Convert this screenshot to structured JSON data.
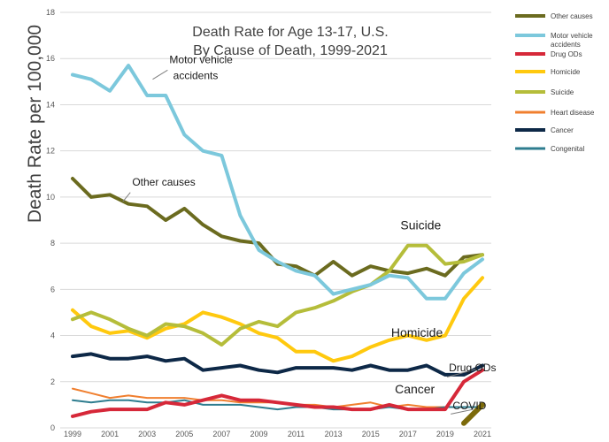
{
  "chart_data": {
    "type": "line",
    "title_line1": "Death Rate for Age 13-17, U.S.",
    "title_line2": "By Cause of Death, 1999-2021",
    "xlabel": "",
    "ylabel": "Death Rate per 100,000",
    "ylim": [
      0,
      18
    ],
    "yticks": [
      0,
      2,
      4,
      6,
      8,
      10,
      12,
      14,
      16,
      18
    ],
    "xlim": [
      1999,
      2021
    ],
    "xticks": [
      1999,
      2001,
      2003,
      2005,
      2007,
      2009,
      2011,
      2013,
      2015,
      2017,
      2019,
      2021
    ],
    "grid": "horizontal",
    "legend_position": "right",
    "x": [
      1999,
      2000,
      2001,
      2002,
      2003,
      2004,
      2005,
      2006,
      2007,
      2008,
      2009,
      2010,
      2011,
      2012,
      2013,
      2014,
      2015,
      2016,
      2017,
      2018,
      2019,
      2020,
      2021
    ],
    "series": [
      {
        "name": "Other causes",
        "color": "#6b6b1f",
        "width": 4,
        "values": [
          10.8,
          10.0,
          10.1,
          9.7,
          9.6,
          9.0,
          9.5,
          8.8,
          8.3,
          8.1,
          8.0,
          7.1,
          7.0,
          6.6,
          7.2,
          6.6,
          7.0,
          6.8,
          6.7,
          6.9,
          6.6,
          7.4,
          7.5
        ]
      },
      {
        "name": "Motor vehicle accidents",
        "color": "#7cc8dc",
        "width": 4,
        "values": [
          15.3,
          15.1,
          14.6,
          15.7,
          14.4,
          14.4,
          12.7,
          12.0,
          11.8,
          9.2,
          7.7,
          7.2,
          6.8,
          6.6,
          5.8,
          6.0,
          6.2,
          6.6,
          6.5,
          5.6,
          5.6,
          6.7,
          7.3
        ]
      },
      {
        "name": "Drug ODs",
        "color": "#d62839",
        "width": 4,
        "values": [
          0.5,
          0.7,
          0.8,
          0.8,
          0.8,
          1.1,
          1.0,
          1.2,
          1.4,
          1.2,
          1.2,
          1.1,
          1.0,
          0.9,
          0.9,
          0.8,
          0.8,
          1.0,
          0.8,
          0.8,
          0.8,
          2.0,
          2.5
        ]
      },
      {
        "name": "Homicide",
        "color": "#ffc90e",
        "width": 4,
        "values": [
          5.1,
          4.4,
          4.1,
          4.2,
          3.9,
          4.3,
          4.5,
          5.0,
          4.8,
          4.5,
          4.1,
          3.9,
          3.3,
          3.3,
          2.9,
          3.1,
          3.5,
          3.8,
          4.0,
          3.8,
          4.0,
          5.6,
          6.5
        ]
      },
      {
        "name": "Suicide",
        "color": "#b5bd3a",
        "width": 4,
        "values": [
          4.7,
          5.0,
          4.7,
          4.3,
          4.0,
          4.5,
          4.4,
          4.1,
          3.6,
          4.3,
          4.6,
          4.4,
          5.0,
          5.2,
          5.5,
          5.9,
          6.2,
          6.8,
          7.9,
          7.9,
          7.1,
          7.2,
          7.5
        ]
      },
      {
        "name": "Heart disease",
        "color": "#f07f2f",
        "width": 2,
        "values": [
          1.7,
          1.5,
          1.3,
          1.4,
          1.3,
          1.3,
          1.3,
          1.2,
          1.2,
          1.1,
          1.1,
          1.1,
          1.0,
          1.0,
          0.9,
          1.0,
          1.1,
          0.9,
          1.0,
          0.9,
          0.9,
          0.9,
          0.9
        ]
      },
      {
        "name": "Cancer",
        "color": "#0d2847",
        "width": 4,
        "values": [
          3.1,
          3.2,
          3.0,
          3.0,
          3.1,
          2.9,
          3.0,
          2.5,
          2.6,
          2.7,
          2.5,
          2.4,
          2.6,
          2.6,
          2.6,
          2.5,
          2.7,
          2.5,
          2.5,
          2.7,
          2.3,
          2.3,
          2.7
        ]
      },
      {
        "name": "Congenital",
        "color": "#2e7d8f",
        "width": 2,
        "values": [
          1.2,
          1.1,
          1.2,
          1.2,
          1.1,
          1.1,
          1.2,
          1.0,
          1.0,
          1.0,
          0.9,
          0.8,
          0.9,
          0.9,
          0.8,
          0.8,
          0.8,
          0.9,
          0.8,
          0.8,
          0.9,
          0.9,
          0.9
        ]
      },
      {
        "name": "COVID",
        "color": "#7c6a0a",
        "width": 6,
        "in_legend": false,
        "values": [
          null,
          null,
          null,
          null,
          null,
          null,
          null,
          null,
          null,
          null,
          null,
          null,
          null,
          null,
          null,
          null,
          null,
          null,
          null,
          null,
          null,
          0.2,
          1.0
        ]
      }
    ],
    "annotations": [
      {
        "text": "Motor vehicle",
        "x": 2004.2,
        "y": 15.8,
        "size": "ann"
      },
      {
        "text": "accidents",
        "x": 2004.4,
        "y": 15.1,
        "size": "ann"
      },
      {
        "text": "Other causes",
        "x": 2002.2,
        "y": 10.5,
        "size": "ann"
      },
      {
        "text": "Suicide",
        "x": 2016.6,
        "y": 8.6,
        "size": "ann-lg"
      },
      {
        "text": "Homicide",
        "x": 2016.1,
        "y": 3.95,
        "size": "ann-lg"
      },
      {
        "text": "Cancer",
        "x": 2016.3,
        "y": 1.5,
        "size": "ann-lg"
      },
      {
        "text": "Drug ODs",
        "x": 2019.2,
        "y": 2.45,
        "size": "ann"
      },
      {
        "text": "COVID",
        "x": 2019.4,
        "y": 0.8,
        "size": "ann"
      }
    ]
  }
}
